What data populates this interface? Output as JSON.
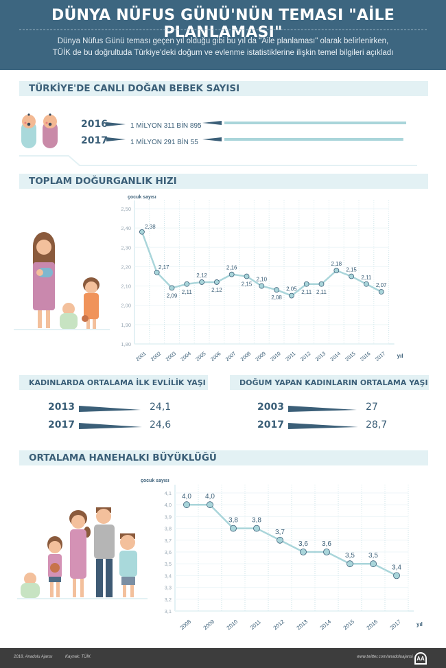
{
  "header": {
    "title": "DÜNYA NÜFUS GÜNÜ'NÜN TEMASI \"AİLE PLANLAMASI\"",
    "subtitle_line1": "Dünya Nüfus Günü teması geçen yıl olduğu gibi bu yıl da \"Aile planlaması\" olarak belirlenirken,",
    "subtitle_line2": "TÜİK de bu doğrultuda Türkiye'deki doğum ve evlenme istatistiklerine ilişkin temel bilgileri açıkladı"
  },
  "births": {
    "title": "TÜRKİYE'DE CANLI DOĞAN BEBEK SAYISI",
    "rows": [
      {
        "year": "2016",
        "label": "1 MİLYON 311 BİN 895",
        "value": 1311895
      },
      {
        "year": "2017",
        "label": "1 MİLYON 291 BİN 55",
        "value": 1291055
      }
    ]
  },
  "marriage_age": {
    "title": "KADINLARDA ORTALAMA İLK EVLİLİK YAŞI",
    "rows": [
      {
        "year": "2013",
        "value": "24,1"
      },
      {
        "year": "2017",
        "value": "24,6"
      }
    ]
  },
  "mother_age": {
    "title": "DOĞUM YAPAN KADINLARIN ORTALAMA YAŞI",
    "rows": [
      {
        "year": "2003",
        "value": "27"
      },
      {
        "year": "2017",
        "value": "28,7"
      }
    ]
  },
  "chart_data": [
    {
      "type": "line",
      "title": "TOPLAM DOĞURGANLIK HIZI",
      "ylabel": "çocuk sayısı",
      "xlabel": "yıl",
      "x": [
        "2001",
        "2002",
        "2003",
        "2004",
        "2005",
        "2006",
        "2007",
        "2008",
        "2009",
        "2010",
        "2011",
        "2012",
        "2013",
        "2014",
        "2015",
        "2016",
        "2017"
      ],
      "values": [
        2.38,
        2.17,
        2.09,
        2.11,
        2.12,
        2.12,
        2.16,
        2.15,
        2.1,
        2.08,
        2.05,
        2.11,
        2.11,
        2.18,
        2.15,
        2.11,
        2.07
      ],
      "labels": [
        "2,38",
        "2,17",
        "2,09",
        "2,11",
        "2,12",
        "2,12",
        "2,16",
        "2,15",
        "2,10",
        "2,08",
        "2,05",
        "2,11",
        "2,11",
        "2,18",
        "2,15",
        "2,11",
        "2,07"
      ],
      "yticks": [
        "1,80",
        "1,90",
        "2,00",
        "2,10",
        "2,20",
        "2,30",
        "2,40",
        "2,50"
      ],
      "ylim": [
        1.8,
        2.5
      ],
      "grid": true,
      "color": "#a9d5da"
    },
    {
      "type": "line",
      "title": "ORTALAMA HANEHALKI BÜYÜKLÜĞÜ",
      "ylabel": "çocuk sayısı",
      "xlabel": "yıl",
      "x": [
        "2008",
        "2009",
        "2010",
        "2011",
        "2012",
        "2013",
        "2014",
        "2015",
        "2016",
        "2017"
      ],
      "values": [
        4.0,
        4.0,
        3.8,
        3.8,
        3.7,
        3.6,
        3.6,
        3.5,
        3.5,
        3.4
      ],
      "labels": [
        "4,0",
        "4,0",
        "3,8",
        "3,8",
        "3,7",
        "3,6",
        "3,6",
        "3,5",
        "3,5",
        "3,4"
      ],
      "yticks": [
        "3,1",
        "3,2",
        "3,3",
        "3,4",
        "3,5",
        "3,6",
        "3,7",
        "3,8",
        "3,9",
        "4,0",
        "4,1"
      ],
      "ylim": [
        3.1,
        4.1
      ],
      "grid": true,
      "color": "#a9d5da"
    }
  ],
  "footer": {
    "copyright": "2018, Anadolu Ajansı",
    "source": "Kaynak: TÜİK",
    "url": "www.twitter.com/anadoluajansi",
    "logo": "AA"
  },
  "colors": {
    "header_bg": "#3d6680",
    "accent_dark": "#3b5f78",
    "accent_light": "#a9d5da",
    "section_bg": "#e3f1f4"
  }
}
